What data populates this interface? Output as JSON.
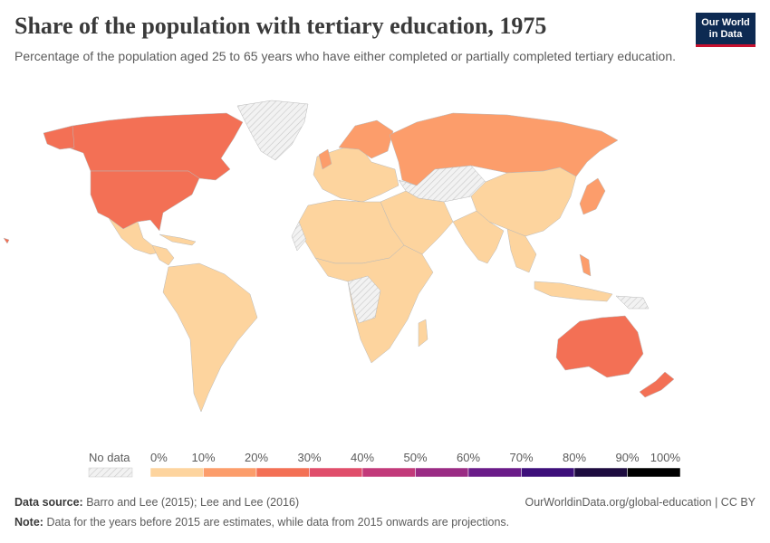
{
  "title": "Share of the population with tertiary education, 1975",
  "subtitle": "Percentage of the population aged 25 to 65 years who have either completed or partially completed tertiary education.",
  "logo": {
    "line1": "Our World",
    "line2": "in Data"
  },
  "legend": {
    "no_data_label": "No data",
    "ticks": [
      "0%",
      "10%",
      "20%",
      "30%",
      "40%",
      "50%",
      "60%",
      "70%",
      "80%",
      "90%",
      "100%"
    ],
    "bins": [
      {
        "range": "0-10%",
        "color": "#fdd49e"
      },
      {
        "range": "10-20%",
        "color": "#fc9d6b"
      },
      {
        "range": "20-30%",
        "color": "#f37055"
      },
      {
        "range": "30-40%",
        "color": "#e04e6b"
      },
      {
        "range": "40-50%",
        "color": "#c23a7a"
      },
      {
        "range": "50-60%",
        "color": "#9a2b84"
      },
      {
        "range": "60-70%",
        "color": "#6a1b89"
      },
      {
        "range": "70-80%",
        "color": "#3d0f7a"
      },
      {
        "range": "80-90%",
        "color": "#1d0b3f"
      },
      {
        "range": "90-100%",
        "color": "#000000"
      }
    ]
  },
  "colors": {
    "low": "#fdd49e",
    "mid_low": "#fc9d6b",
    "mid": "#f37055",
    "no_data": "#e6e6e6"
  },
  "map_regions": [
    {
      "name": "Canada",
      "bin": "20-30%"
    },
    {
      "name": "United States",
      "bin": "20-30%"
    },
    {
      "name": "Australia",
      "bin": "20-30%"
    },
    {
      "name": "New Zealand",
      "bin": "20-30%"
    },
    {
      "name": "Russia",
      "bin": "10-20%"
    },
    {
      "name": "Japan",
      "bin": "10-20%"
    },
    {
      "name": "Scandinavia",
      "bin": "10-20%"
    },
    {
      "name": "Greenland",
      "bin": "no data"
    },
    {
      "name": "Central Asia",
      "bin": "no data"
    }
  ],
  "footer": {
    "source_label": "Data source:",
    "source_text": "Barro and Lee (2015); Lee and Lee (2016)",
    "url_text": "OurWorldinData.org/global-education | CC BY",
    "note_label": "Note:",
    "note_text": "Data for the years before 2015 are estimates, while data from 2015 onwards are projections."
  }
}
